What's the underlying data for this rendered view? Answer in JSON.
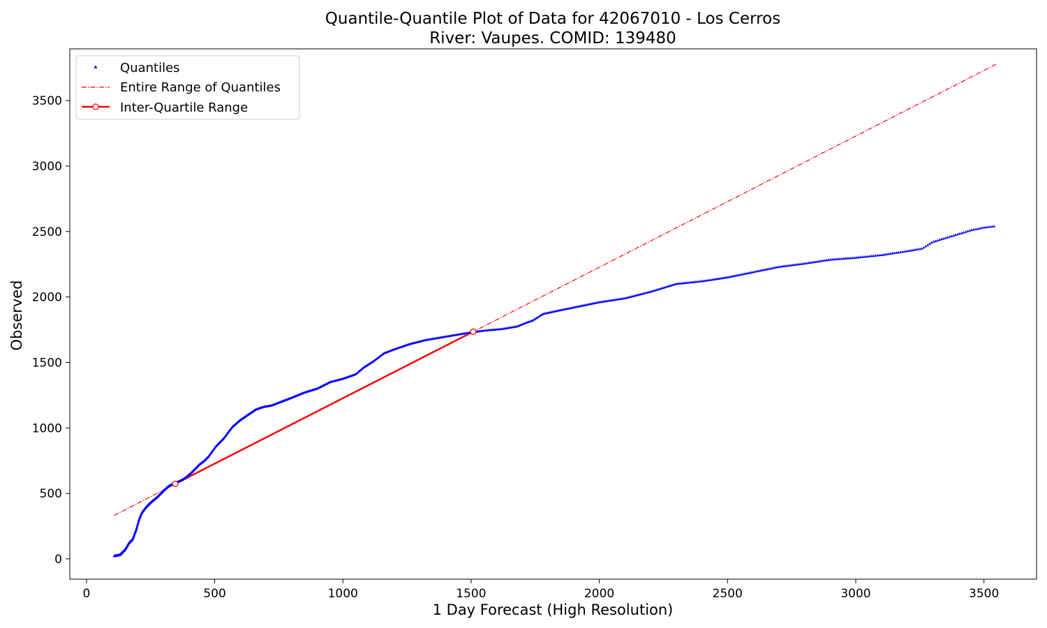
{
  "chart_data": {
    "type": "scatter",
    "title": "Quantile-Quantile Plot of Data for 42067010 - Los Cerros",
    "subtitle": "River: Vaupes. COMID: 139480",
    "xlabel": "1 Day Forecast (High Resolution)",
    "ylabel": "Observed",
    "xlim": [
      -65,
      3705
    ],
    "ylim": [
      -155,
      3895
    ],
    "xticks": [
      0,
      500,
      1000,
      1500,
      2000,
      2500,
      3000,
      3500
    ],
    "yticks": [
      0,
      500,
      1000,
      1500,
      2000,
      2500,
      3000,
      3500
    ],
    "grid": false,
    "legend_position": "top-left",
    "series": [
      {
        "name": "Quantiles",
        "kind": "markers",
        "color": "#0000ff",
        "marker": "triangle-up",
        "curve_x": [
          108,
          130,
          150,
          165,
          180,
          195,
          205,
          215,
          230,
          250,
          275,
          300,
          320,
          345,
          360,
          375,
          390,
          410,
          425,
          440,
          460,
          475,
          490,
          505,
          520,
          535,
          550,
          570,
          600,
          630,
          660,
          690,
          720,
          760,
          800,
          850,
          900,
          950,
          1000,
          1050,
          1080,
          1120,
          1160,
          1200,
          1260,
          1320,
          1380,
          1440,
          1500,
          1560,
          1620,
          1680,
          1710,
          1740,
          1780,
          1850,
          1900,
          2000,
          2100,
          2200,
          2300,
          2400,
          2500,
          2600,
          2700,
          2800,
          2900,
          3000,
          3100,
          3200,
          3260,
          3300,
          3350,
          3400,
          3450,
          3500,
          3540
        ],
        "curve_y": [
          20,
          30,
          70,
          120,
          150,
          230,
          300,
          350,
          390,
          430,
          470,
          520,
          555,
          580,
          590,
          605,
          625,
          660,
          690,
          720,
          750,
          780,
          820,
          860,
          890,
          920,
          960,
          1010,
          1060,
          1100,
          1140,
          1160,
          1170,
          1200,
          1230,
          1270,
          1300,
          1350,
          1375,
          1410,
          1460,
          1510,
          1570,
          1600,
          1640,
          1670,
          1690,
          1710,
          1730,
          1745,
          1755,
          1775,
          1800,
          1820,
          1870,
          1900,
          1920,
          1960,
          1990,
          2040,
          2100,
          2120,
          2150,
          2190,
          2230,
          2255,
          2285,
          2300,
          2320,
          2350,
          2370,
          2420,
          2450,
          2480,
          2510,
          2530,
          2540
        ],
        "sample_count": 900
      },
      {
        "name": "Entire Range of Quantiles",
        "kind": "line",
        "color": "#ff0000",
        "line_style": "dash-dot",
        "x": [
          108,
          3550
        ],
        "y": [
          332,
          3780
        ]
      },
      {
        "name": "Inter-Quartile Range",
        "kind": "line-markers",
        "color": "#ff0000",
        "line_style": "solid",
        "marker": "circle-open",
        "x": [
          346,
          1508
        ],
        "y": [
          573,
          1735
        ]
      }
    ]
  }
}
